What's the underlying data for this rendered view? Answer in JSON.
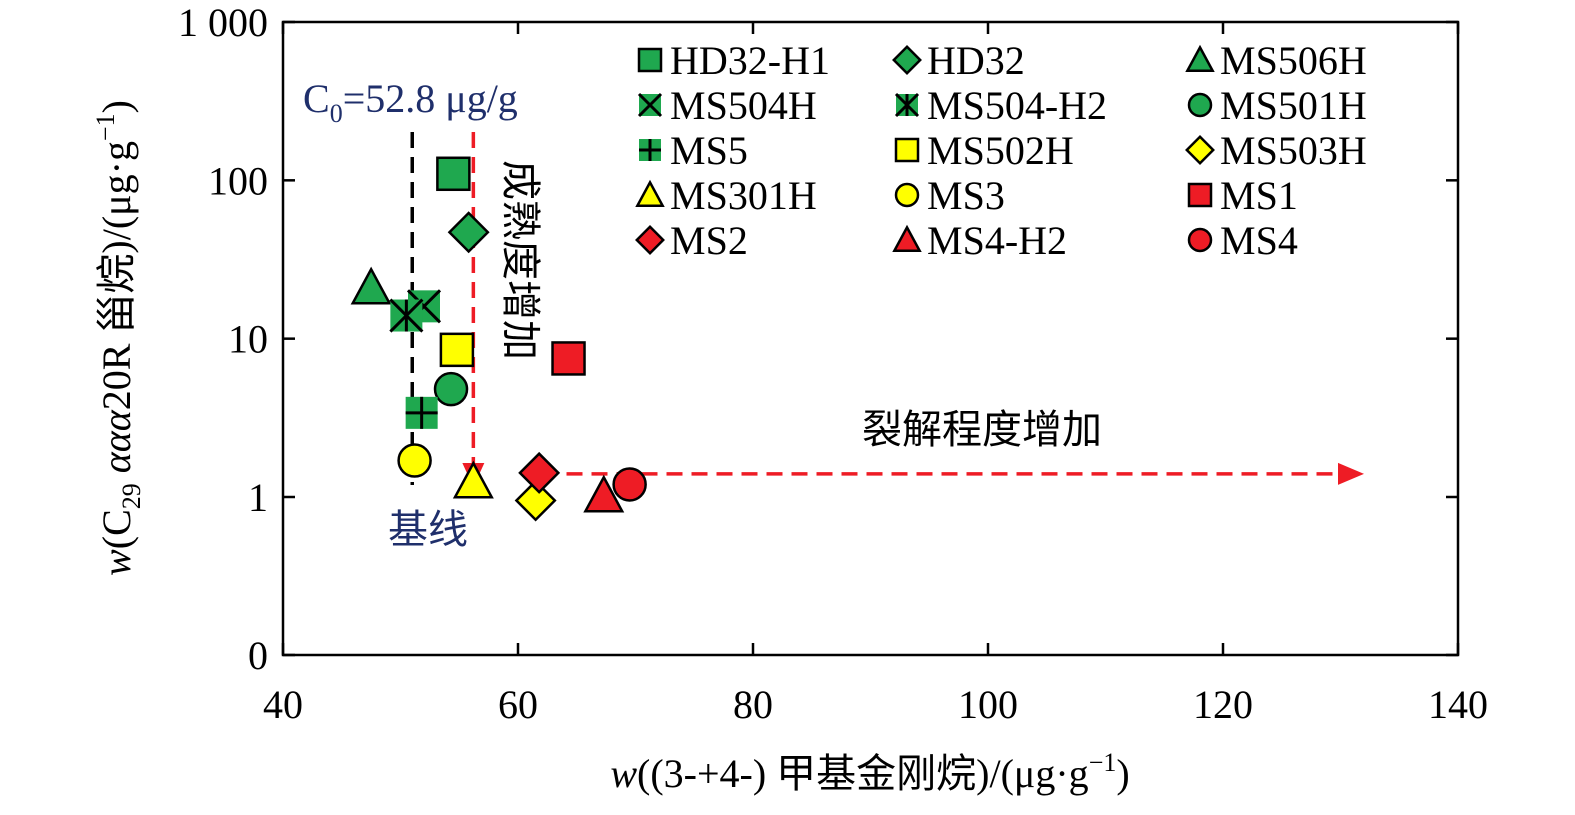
{
  "chart_data": {
    "type": "scatter",
    "x_axis": {
      "label_prefix": "w",
      "label_main": "((3-+4-) 甲基金刚烷)/(μg·g",
      "label_sup": "−1",
      "label_end": ")",
      "range": [
        40,
        140
      ],
      "ticks": [
        40,
        60,
        80,
        100,
        120,
        140
      ],
      "tick_labels": [
        "40",
        "60",
        "80",
        "100",
        "120",
        "140"
      ]
    },
    "y_axis": {
      "scale": "log (with 0 at bottom)",
      "label_prefix": "w",
      "label_a": "(C",
      "label_sub": "29",
      "label_b": " ",
      "label_italic": "ααα",
      "label_c": "20R 甾烷)/(μg·g",
      "label_sup": "−1",
      "label_end": ")",
      "ticks": [
        0,
        1,
        10,
        100,
        1000
      ],
      "tick_labels": [
        "0",
        "1",
        "10",
        "100",
        "1 000"
      ]
    },
    "grid": false,
    "legend_position": "top-right",
    "series": [
      {
        "name": "HD32-H1",
        "marker": "square",
        "color": "#1fa84f",
        "points": [
          [
            54.5,
            110
          ]
        ]
      },
      {
        "name": "HD32",
        "marker": "diamond",
        "color": "#1fa84f",
        "points": [
          [
            55.8,
            47
          ]
        ]
      },
      {
        "name": "MS506H",
        "marker": "triangle",
        "color": "#1fa84f",
        "points": [
          [
            47.5,
            21
          ]
        ]
      },
      {
        "name": "MS504H",
        "marker": "x",
        "color": "#1fa84f",
        "points": [
          [
            52,
            16
          ]
        ]
      },
      {
        "name": "MS504-H2",
        "marker": "asterisk",
        "color": "#1fa84f",
        "points": [
          [
            50.5,
            14
          ]
        ]
      },
      {
        "name": "MS501H",
        "marker": "circle",
        "color": "#1fa84f",
        "points": [
          [
            54.3,
            4.8
          ]
        ]
      },
      {
        "name": "MS5",
        "marker": "plus",
        "color": "#1fa84f",
        "points": [
          [
            51.8,
            3.4
          ]
        ]
      },
      {
        "name": "MS502H",
        "marker": "square",
        "color": "#ffff00",
        "points": [
          [
            54.8,
            8.5
          ]
        ]
      },
      {
        "name": "MS503H",
        "marker": "diamond",
        "color": "#ffff00",
        "points": [
          [
            61.5,
            0.95
          ]
        ]
      },
      {
        "name": "MS301H",
        "marker": "triangle",
        "color": "#ffff00",
        "points": [
          [
            56.2,
            1.25
          ]
        ]
      },
      {
        "name": "MS3",
        "marker": "circle",
        "color": "#ffff00",
        "points": [
          [
            51.2,
            1.7
          ]
        ]
      },
      {
        "name": "MS1",
        "marker": "square",
        "color": "#ee1c25",
        "points": [
          [
            64.3,
            7.5
          ]
        ]
      },
      {
        "name": "MS2",
        "marker": "diamond",
        "color": "#ee1c25",
        "points": [
          [
            61.8,
            1.42
          ]
        ]
      },
      {
        "name": "MS4-H2",
        "marker": "triangle",
        "color": "#ee1c25",
        "points": [
          [
            67.3,
            1.02
          ]
        ]
      },
      {
        "name": "MS4",
        "marker": "circle",
        "color": "#ee1c25",
        "points": [
          [
            69.5,
            1.2
          ]
        ]
      }
    ],
    "annotations": {
      "baseline_value_prefix": "C",
      "baseline_value_sub": "0",
      "baseline_value_rest": "=52.8 μg/g",
      "baseline_label": "基线",
      "maturity_label": "成熟度增加",
      "cracking_label": "裂解程度增加",
      "baseline_x": 51,
      "maturity_x": 56.2,
      "cracking_arrow_y": 1.4,
      "cracking_arrow_x_range": [
        62,
        132
      ]
    },
    "colors": {
      "green": "#1fa84f",
      "yellow": "#ffff00",
      "red": "#ee1c25",
      "annotation_blue": "#1f2f6b"
    }
  }
}
